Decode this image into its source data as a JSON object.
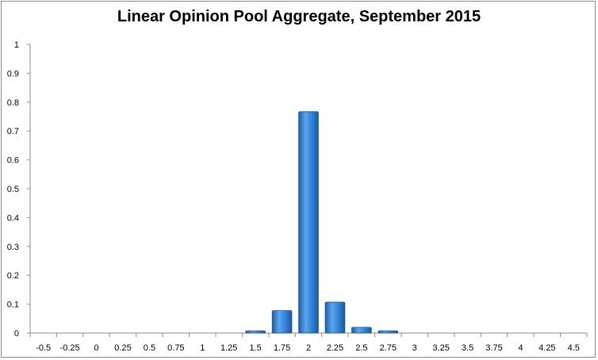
{
  "chart_data": {
    "type": "bar",
    "title": "Linear Opinion Pool Aggregate, September 2015",
    "xlabel": "",
    "ylabel": "",
    "categories": [
      "-0.5",
      "-0.25",
      "0",
      "0.25",
      "0.5",
      "0.75",
      "1",
      "1.25",
      "1.5",
      "1.75",
      "2",
      "2.25",
      "2.5",
      "2.75",
      "3",
      "3.25",
      "3.5",
      "3.75",
      "4",
      "4.25",
      "4.5"
    ],
    "values": [
      0,
      0,
      0,
      0,
      0,
      0,
      0,
      0,
      0.008,
      0.078,
      0.767,
      0.107,
      0.02,
      0.008,
      0,
      0,
      0,
      0,
      0,
      0,
      0
    ],
    "ylim": [
      0,
      1
    ],
    "yticks": [
      "0",
      "0.1",
      "0.2",
      "0.3",
      "0.4",
      "0.5",
      "0.6",
      "0.7",
      "0.8",
      "0.9",
      "1"
    ],
    "grid": false,
    "bar_color": "#2e7fd6"
  }
}
